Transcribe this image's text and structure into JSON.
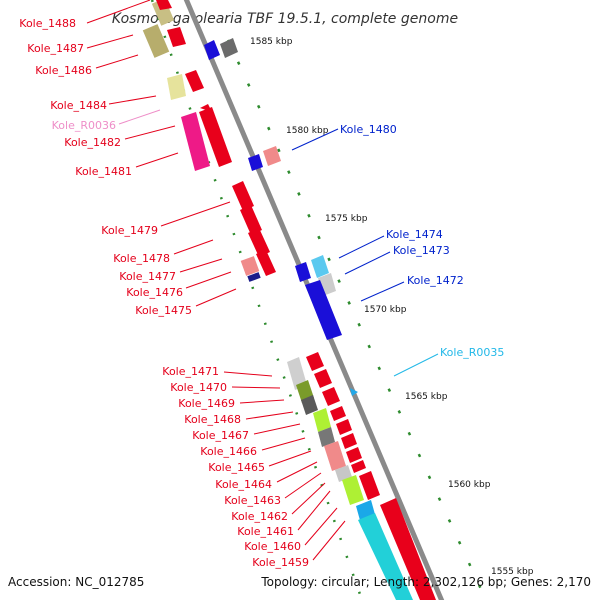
{
  "header": {
    "title": "Kosmotoga olearia TBF 19.5.1, complete genome"
  },
  "footer": {
    "accession": "Accession: NC_012785",
    "topology": "Topology: circular; Length: 2,302,126 bp; Genes: 2,170"
  },
  "scale": [
    "1585 kbp",
    "1580 kbp",
    "1575 kbp",
    "1570 kbp",
    "1565 kbp",
    "1560 kbp",
    "1555 kbp"
  ],
  "colors": {
    "backbone": "#8a8a8a",
    "tick": "#2e8b2e",
    "label_red": "#e4001b",
    "label_blue": "#0022cc",
    "label_pink": "#ee8ec8",
    "label_cyan": "#22b8e8"
  },
  "labels": {
    "left": [
      "Kole_1488",
      "Kole_1487",
      "Kole_1486",
      "Kole_1484",
      "Kole_R0036",
      "Kole_1482",
      "Kole_1481",
      "Kole_1479",
      "Kole_1478",
      "Kole_1477",
      "Kole_1476",
      "Kole_1475",
      "Kole_1471",
      "Kole_1470",
      "Kole_1469",
      "Kole_1468",
      "Kole_1467",
      "Kole_1466",
      "Kole_1465",
      "Kole_1464",
      "Kole_1463",
      "Kole_1462",
      "Kole_1461",
      "Kole_1460",
      "Kole_1459"
    ],
    "right": [
      "Kole_1480",
      "Kole_1474",
      "Kole_1473",
      "Kole_1472",
      "Kole_R0035"
    ]
  }
}
